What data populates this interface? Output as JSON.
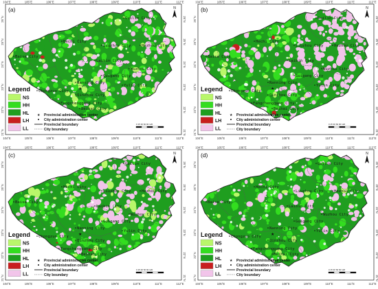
{
  "panels": [
    {
      "letter": "(a)"
    },
    {
      "letter": "(b)"
    },
    {
      "letter": "(c)"
    },
    {
      "letter": "(d)"
    }
  ],
  "longitudes": [
    "104°E",
    "105°E",
    "106°E",
    "107°E",
    "108°E",
    "109°E",
    "110°E",
    "111°E",
    "112°E"
  ],
  "latitudes": [
    "26°N",
    "25°N",
    "24°N",
    "23°N",
    "22°N",
    "21°N"
  ],
  "north_arrow": "N",
  "legend": {
    "title": "Legend",
    "classes": [
      {
        "code": "NS",
        "color": "#b9f76a"
      },
      {
        "code": "HH",
        "color": "#33dd1f"
      },
      {
        "code": "HL",
        "color": "#1f9e1f"
      },
      {
        "code": "LH",
        "color": "#c81e1e"
      },
      {
        "code": "LL",
        "color": "#f2c4ea"
      }
    ],
    "symbols": [
      "Provincial administrative center",
      "City administration center",
      "Provincial boundary",
      "City boundary"
    ]
  },
  "scale_bar": "0 15 30   60   90   120",
  "cities": [
    "Guilin City",
    "Hechi City",
    "Liuzhou City",
    "Hezhou City",
    "Baise City",
    "Laibin City",
    "Wuzhou City",
    "Guigang City",
    "Nanning City",
    "Yulin City",
    "Chongzuo City",
    "Qinzhou City",
    "Fangchenggang City",
    "Beihai City"
  ]
}
